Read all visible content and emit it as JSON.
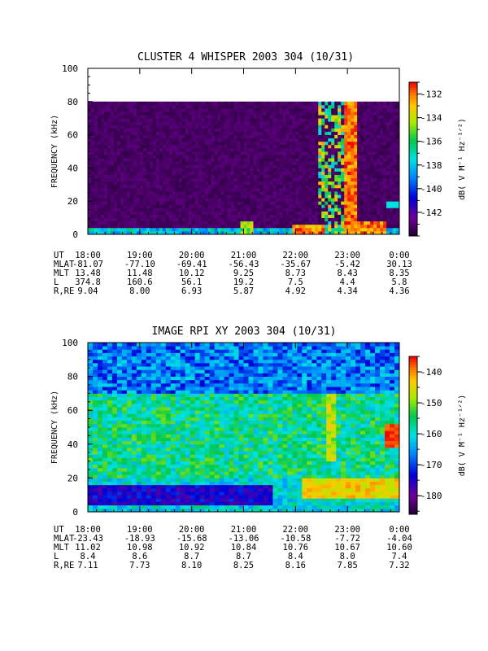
{
  "chart_data": [
    {
      "type": "heatmap",
      "title": "CLUSTER 4 WHISPER 2003 304 (10/31)",
      "ylabel": "FREQUENCY (kHz)",
      "ylim": [
        0,
        100
      ],
      "yticks": [
        "0",
        "20",
        "40",
        "60",
        "80",
        "100"
      ],
      "data_ceiling_khz": 80,
      "xticks": [
        "18:00",
        "19:00",
        "20:00",
        "21:00",
        "22:00",
        "23:00",
        "0:00"
      ],
      "colorbar": {
        "label": "dB( V M⁻¹ Hz⁻¹ᐟ²)",
        "range": [
          -144,
          -131
        ],
        "ticks": [
          "-132",
          "-134",
          "-136",
          "-138",
          "-140",
          "-142"
        ]
      },
      "grid": false,
      "features": [
        {
          "description": "dark background below -142 dB across most of the interval"
        },
        {
          "time": "20:55",
          "freq_range_khz": [
            0,
            8
          ],
          "level": "moderate"
        },
        {
          "time": "22:35-23:00",
          "freq_range_khz": [
            0,
            80
          ],
          "level": "high"
        },
        {
          "time": "23:00-23:15",
          "freq_range_khz": [
            0,
            80
          ],
          "level": "saturated"
        }
      ],
      "ephemeris": {
        "rows": [
          {
            "label": "UT",
            "values": [
              "18:00",
              "19:00",
              "20:00",
              "21:00",
              "22:00",
              "23:00",
              "0:00"
            ]
          },
          {
            "label": "MLAT",
            "values": [
              "-81.07",
              "-77.10",
              "-69.41",
              "-56.43",
              "-35.67",
              "-5.42",
              "30.13"
            ]
          },
          {
            "label": "MLT",
            "values": [
              "13.48",
              "11.48",
              "10.12",
              "9.25",
              "8.73",
              "8.43",
              "8.35"
            ]
          },
          {
            "label": "L",
            "values": [
              "374.8",
              "160.6",
              "56.1",
              "19.2",
              "7.5",
              "4.4",
              "5.8"
            ]
          },
          {
            "label": "R,RE",
            "values": [
              "9.04",
              "8.00",
              "6.93",
              "5.87",
              "4.92",
              "4.34",
              "4.36"
            ]
          }
        ]
      }
    },
    {
      "type": "heatmap",
      "title": "IMAGE RPI XY 2003 304 (10/31)",
      "ylabel": "FREQUENCY (kHz)",
      "ylim": [
        0,
        100
      ],
      "yticks": [
        "0",
        "20",
        "40",
        "60",
        "80",
        "100"
      ],
      "xticks": [
        "18:00",
        "19:00",
        "20:00",
        "21:00",
        "22:00",
        "23:00",
        "0:00"
      ],
      "colorbar": {
        "label": "dB( V M⁻¹ Hz⁻¹ᐟ²)",
        "range": [
          -186,
          -135
        ],
        "ticks": [
          "-140",
          "-150",
          "-160",
          "-170",
          "-180"
        ]
      },
      "grid": false,
      "features": [
        {
          "time": "18:00-00:00",
          "freq_range_khz": [
            70,
            100
          ],
          "level": "low (blue/cyan)"
        },
        {
          "time": "18:00-00:00",
          "freq_range_khz": [
            20,
            70
          ],
          "level": "mid (green)"
        },
        {
          "time": "18:00-21:30",
          "freq_range_khz": [
            4,
            16
          ],
          "level": "low (dark blue band)"
        },
        {
          "time": "22:00-00:00",
          "freq_range_khz": [
            8,
            20
          ],
          "level": "high (yellow/orange)"
        },
        {
          "time": "23:55",
          "freq_range_khz": [
            40,
            50
          ],
          "level": "saturated (red)"
        }
      ],
      "ephemeris": {
        "rows": [
          {
            "label": "UT",
            "values": [
              "18:00",
              "19:00",
              "20:00",
              "21:00",
              "22:00",
              "23:00",
              "0:00"
            ]
          },
          {
            "label": "MLAT",
            "values": [
              "-23.43",
              "-18.93",
              "-15.68",
              "-13.06",
              "-10.58",
              "-7.72",
              "-4.04"
            ]
          },
          {
            "label": "MLT",
            "values": [
              "11.02",
              "10.98",
              "10.92",
              "10.84",
              "10.76",
              "10.67",
              "10.60"
            ]
          },
          {
            "label": "L",
            "values": [
              "8.4",
              "8.6",
              "8.7",
              "8.7",
              "8.4",
              "8.0",
              "7.4"
            ]
          },
          {
            "label": "R,RE",
            "values": [
              "7.11",
              "7.73",
              "8.10",
              "8.25",
              "8.16",
              "7.85",
              "7.32"
            ]
          }
        ]
      }
    }
  ]
}
